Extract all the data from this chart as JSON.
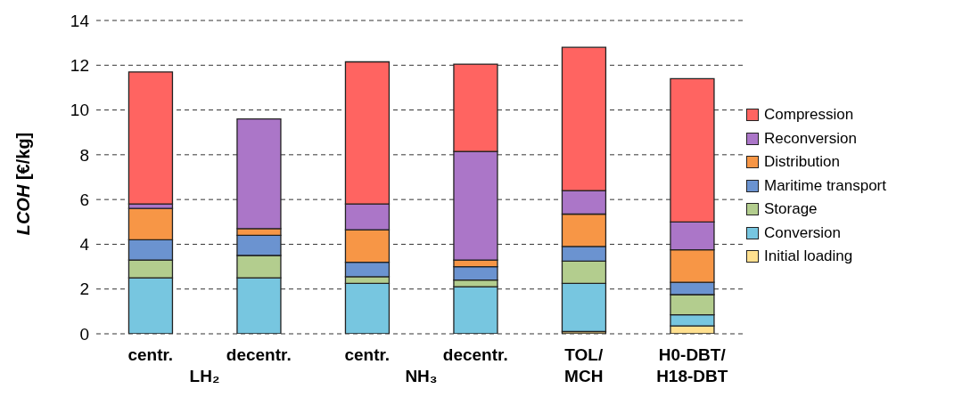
{
  "chart_data": {
    "type": "bar",
    "stacked": true,
    "ylabel": "LCOH [€/kg]",
    "categories": [
      "centr.",
      "decentr.",
      "centr.",
      "decentr.",
      "TOL/MCH",
      "H0-DBT/H18-DBT"
    ],
    "annotations": [
      "LH₂",
      "NH₃"
    ],
    "series": [
      {
        "name": "Initial loading",
        "color": "#ffe08f",
        "values": [
          0,
          0,
          0,
          0,
          0.1,
          0.35
        ]
      },
      {
        "name": "Conversion",
        "color": "#77c6e0",
        "values": [
          2.5,
          2.5,
          2.25,
          2.1,
          2.15,
          0.5
        ]
      },
      {
        "name": "Storage",
        "color": "#b3cd8e",
        "values": [
          0.8,
          1.0,
          0.3,
          0.3,
          1.0,
          0.9
        ]
      },
      {
        "name": "Maritime transport",
        "color": "#6b93d0",
        "values": [
          0.9,
          0.9,
          0.65,
          0.6,
          0.65,
          0.55
        ]
      },
      {
        "name": "Distribution",
        "color": "#f79646",
        "values": [
          1.4,
          0.3,
          1.45,
          0.3,
          1.45,
          1.45
        ]
      },
      {
        "name": "Reconversion",
        "color": "#ab76c8",
        "values": [
          0.2,
          4.9,
          1.15,
          4.85,
          1.05,
          1.25
        ]
      },
      {
        "name": "Compression",
        "color": "#ff6461",
        "values": [
          5.9,
          0,
          6.35,
          3.9,
          6.4,
          6.4
        ]
      }
    ],
    "ylim": [
      0,
      14
    ],
    "yticks": [
      0,
      2,
      4,
      6,
      8,
      10,
      12,
      14
    ],
    "grid": "y",
    "legend": "right"
  }
}
